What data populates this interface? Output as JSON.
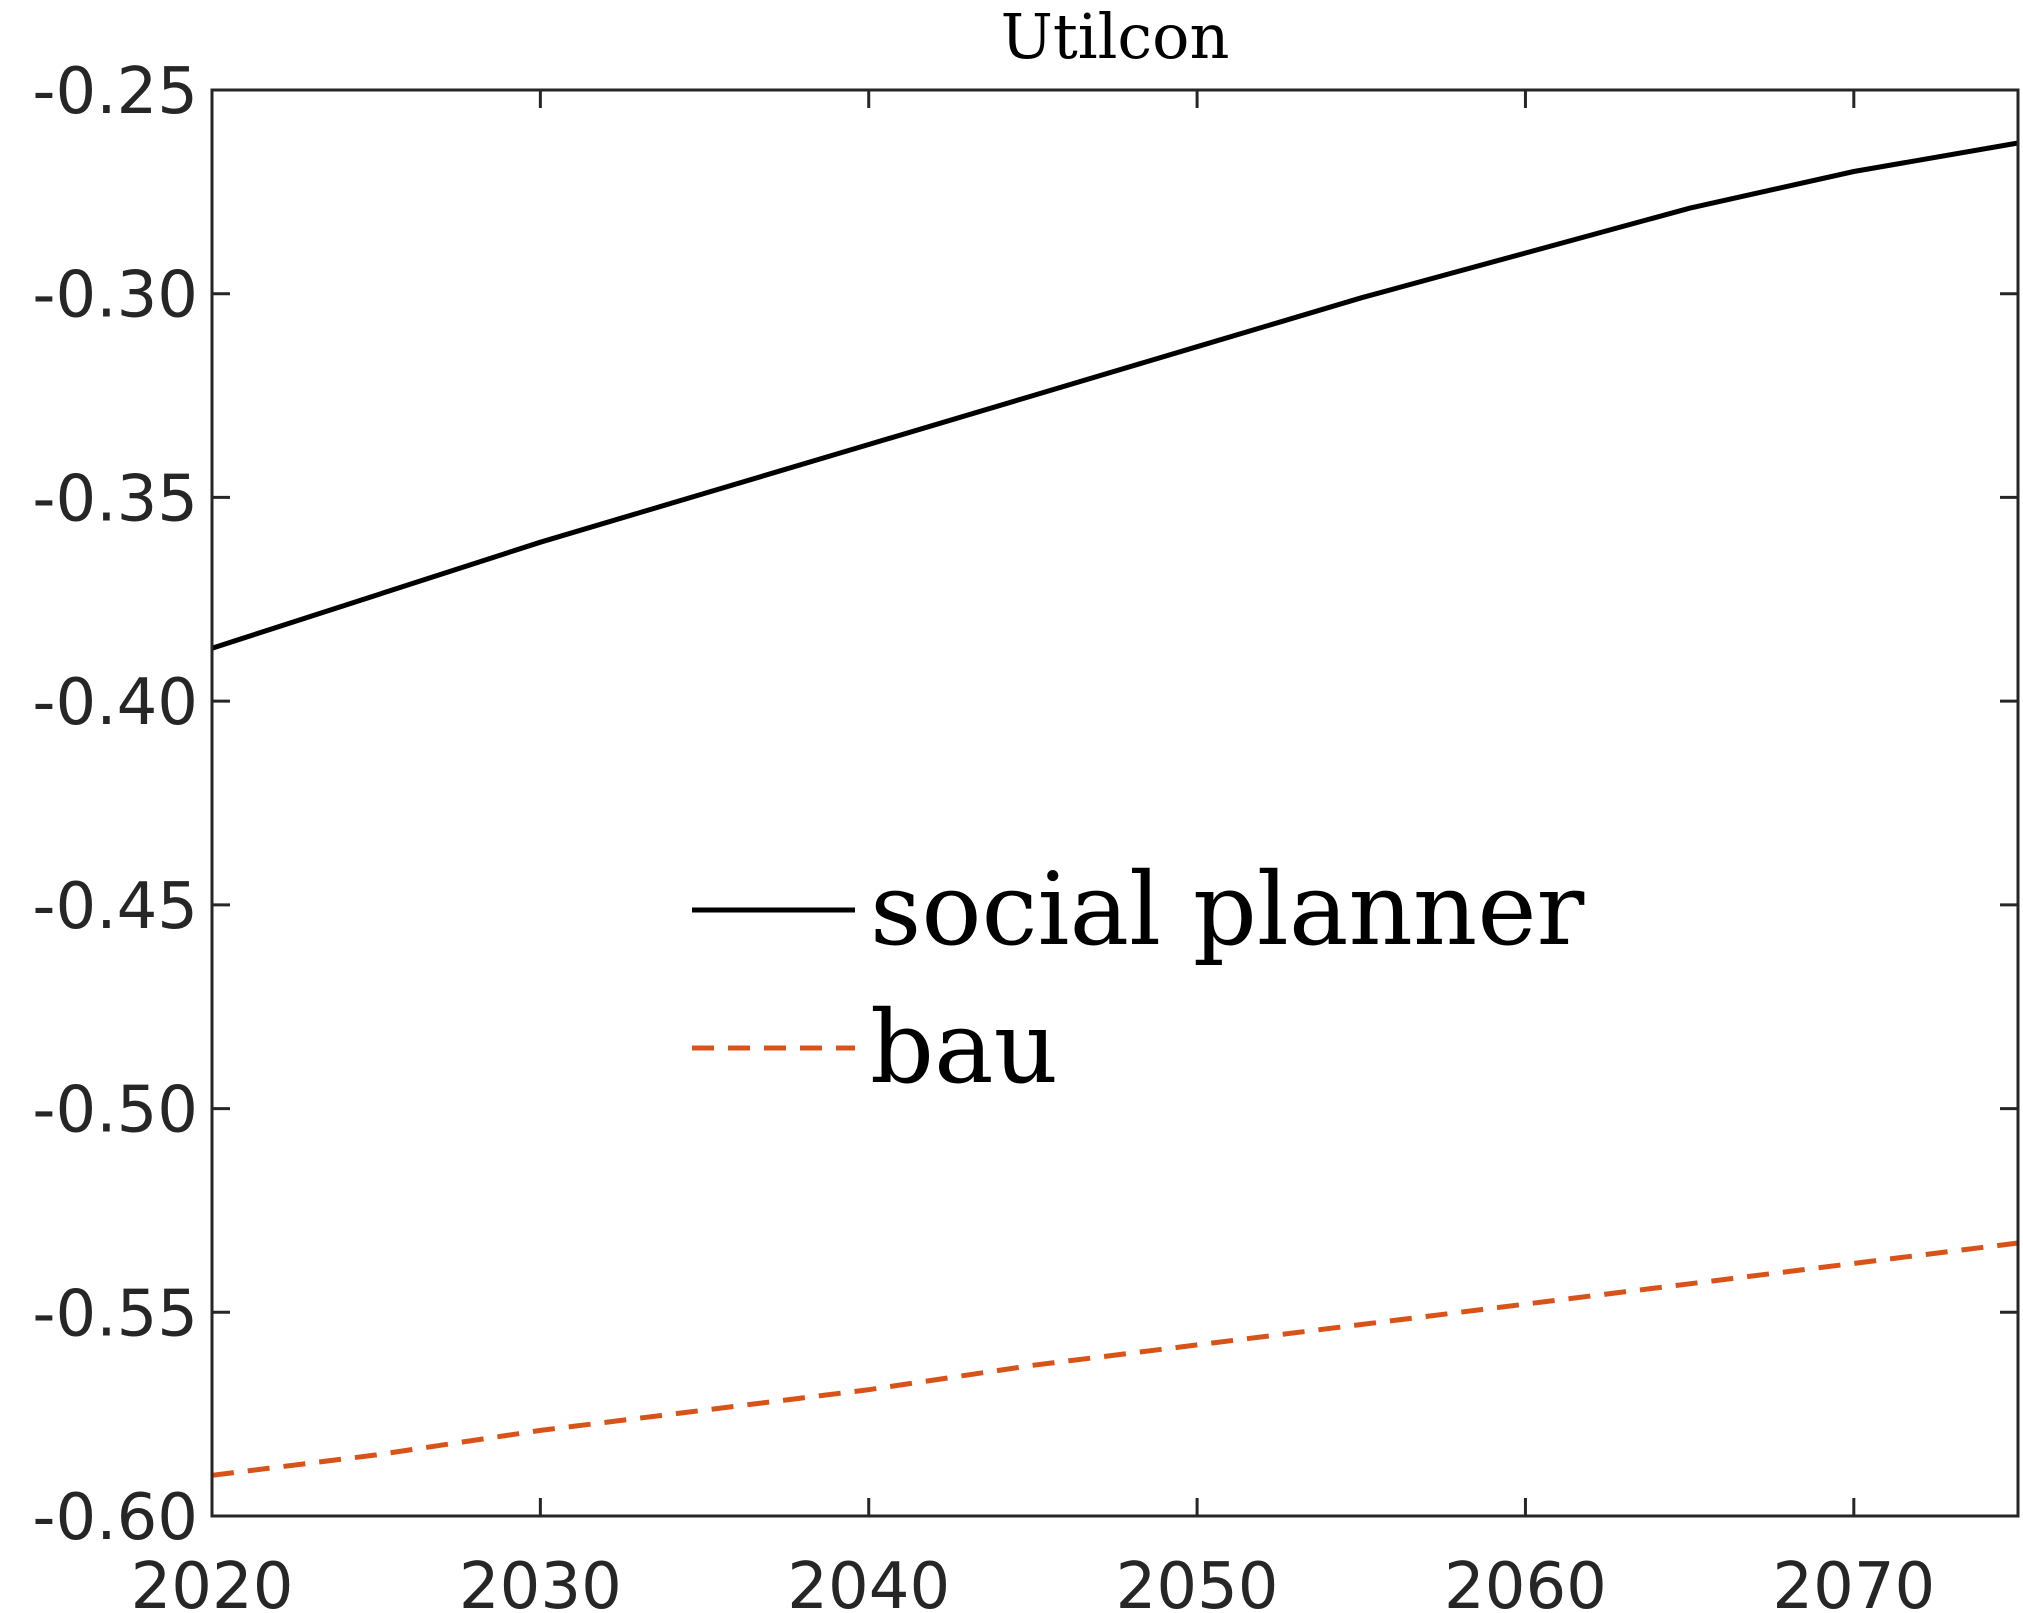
{
  "chart_data": {
    "type": "line",
    "title": "Utilcon",
    "xlabel": "",
    "ylabel": "",
    "xlim": [
      2020,
      2075
    ],
    "ylim": [
      -0.6,
      -0.25
    ],
    "xticks": [
      "2020",
      "2030",
      "2040",
      "2050",
      "2060",
      "2070"
    ],
    "yticks": [
      "-0.25",
      "-0.30",
      "-0.35",
      "-0.40",
      "-0.45",
      "-0.50",
      "-0.55",
      "-0.60"
    ],
    "grid": false,
    "legend": {
      "placement": "center",
      "labels": [
        "social planner",
        "bau"
      ]
    },
    "series": [
      {
        "name": "social planner",
        "color": "#000000",
        "style": "solid",
        "x": [
          2020,
          2025,
          2030,
          2035,
          2040,
          2045,
          2050,
          2055,
          2060,
          2065,
          2070,
          2075
        ],
        "y": [
          -0.387,
          -0.374,
          -0.361,
          -0.349,
          -0.337,
          -0.325,
          -0.313,
          -0.301,
          -0.29,
          -0.279,
          -0.27,
          -0.263
        ]
      },
      {
        "name": "bau",
        "color": "#D95319",
        "style": "dashed",
        "x": [
          2020,
          2025,
          2030,
          2035,
          2040,
          2045,
          2050,
          2055,
          2060,
          2065,
          2070,
          2075
        ],
        "y": [
          -0.59,
          -0.585,
          -0.579,
          -0.574,
          -0.569,
          -0.563,
          -0.558,
          -0.553,
          -0.548,
          -0.543,
          -0.538,
          -0.533
        ]
      }
    ]
  }
}
